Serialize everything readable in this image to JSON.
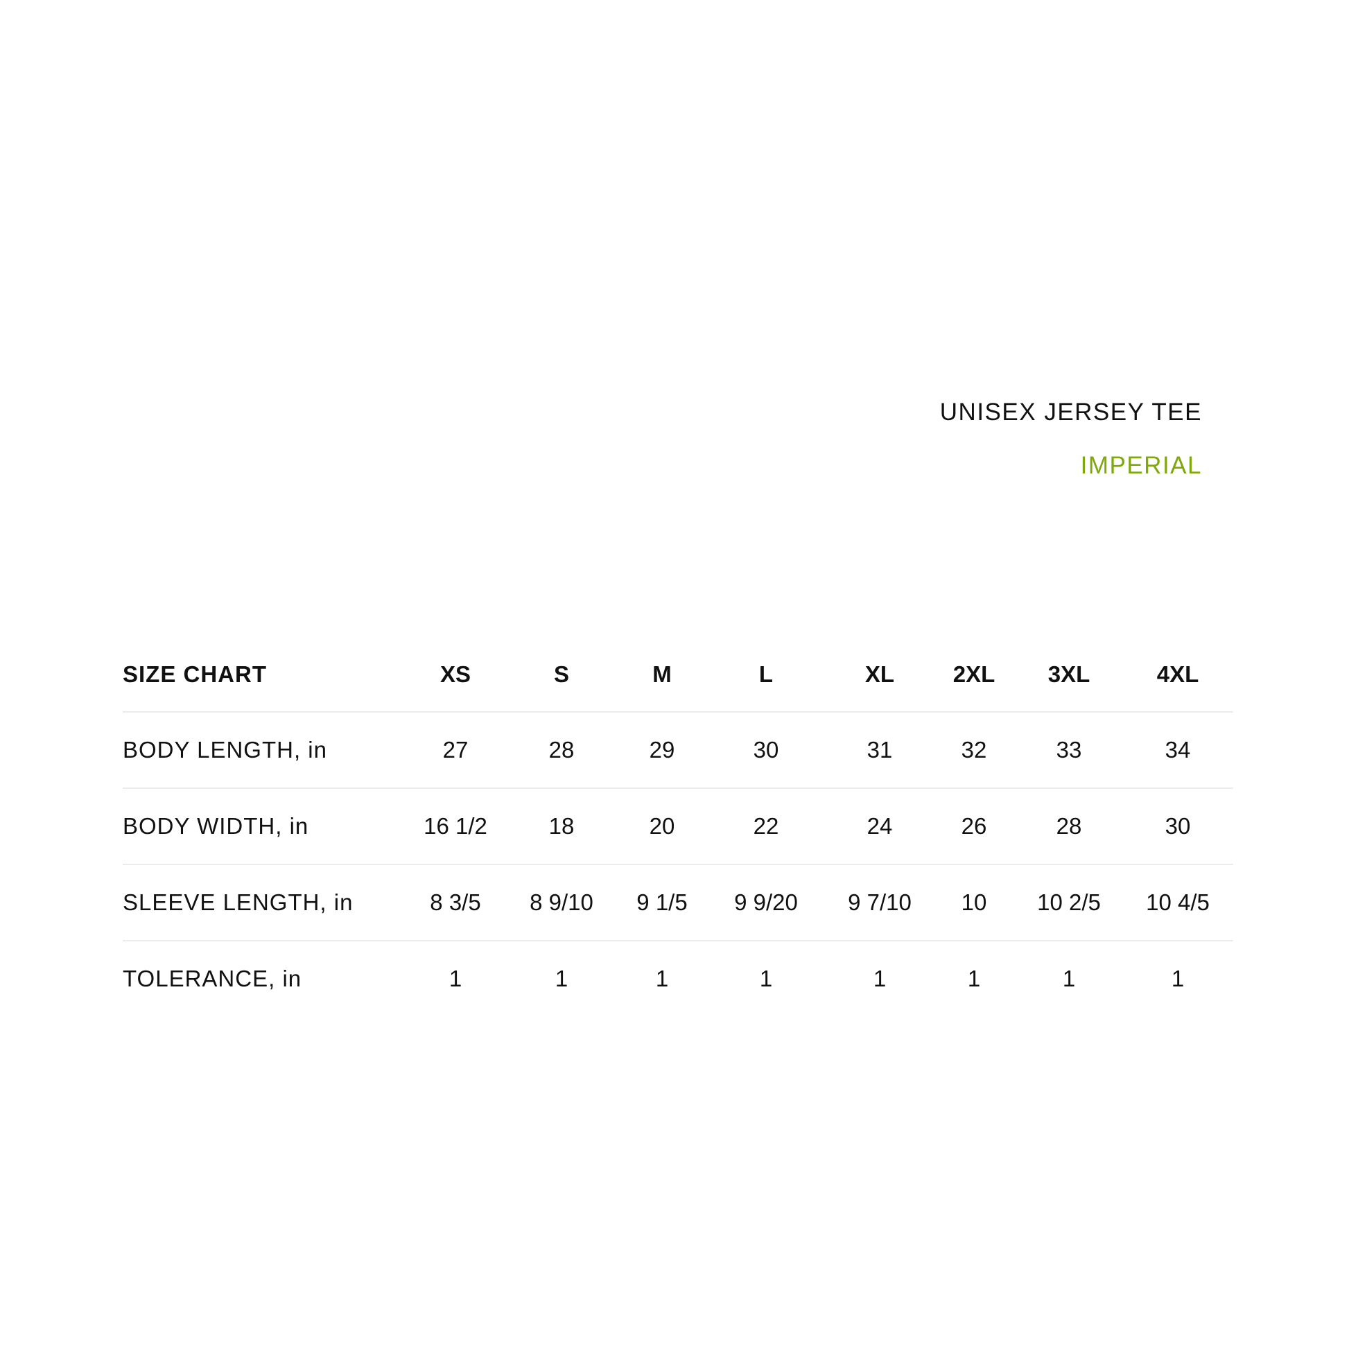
{
  "title": "UNISEX JERSEY TEE",
  "unit_system": "IMPERIAL",
  "colors": {
    "accent": "#7fa80b",
    "text": "#111111",
    "divider": "#ececec"
  },
  "table": {
    "header": "SIZE CHART",
    "sizes": [
      "XS",
      "S",
      "M",
      "L",
      "XL",
      "2XL",
      "3XL",
      "4XL"
    ],
    "rows": [
      {
        "label": "BODY LENGTH, in",
        "values": [
          "27",
          "28",
          "29",
          "30",
          "31",
          "32",
          "33",
          "34"
        ]
      },
      {
        "label": "BODY WIDTH, in",
        "values": [
          "16 1/2",
          "18",
          "20",
          "22",
          "24",
          "26",
          "28",
          "30"
        ]
      },
      {
        "label": "SLEEVE LENGTH, in",
        "values": [
          "8 3/5",
          "8 9/10",
          "9 1/5",
          "9 9/20",
          "9 7/10",
          "10",
          "10 2/5",
          "10 4/5"
        ]
      },
      {
        "label": "TOLERANCE, in",
        "values": [
          "1",
          "1",
          "1",
          "1",
          "1",
          "1",
          "1",
          "1"
        ]
      }
    ]
  }
}
